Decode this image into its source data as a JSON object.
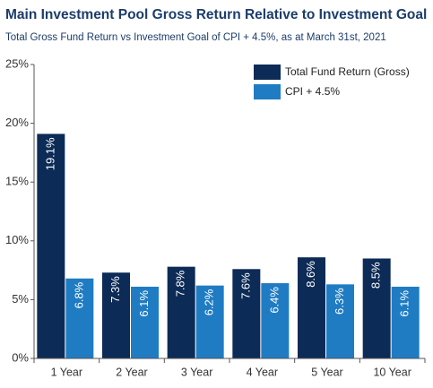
{
  "chart_data": {
    "type": "bar",
    "title": "Main Investment Pool Gross Return Relative to Investment Goal",
    "subtitle": "Total Gross Fund Return vs Investment Goal of CPI + 4.5%, as at March 31st, 2021",
    "categories": [
      "1 Year",
      "2 Year",
      "3 Year",
      "4 Year",
      "5 Year",
      "10 Year"
    ],
    "series": [
      {
        "name": "Total Fund Return (Gross)",
        "color": "#0c2b56",
        "values": [
          19.1,
          7.3,
          7.8,
          7.6,
          8.6,
          8.5
        ],
        "value_labels": [
          "19.1%",
          "7.3%",
          "7.8%",
          "7.6%",
          "8.6%",
          "8.5%"
        ]
      },
      {
        "name": "CPI + 4.5%",
        "color": "#1f7cc3",
        "values": [
          6.8,
          6.1,
          6.2,
          6.4,
          6.3,
          6.1
        ],
        "value_labels": [
          "6.8%",
          "6.1%",
          "6.2%",
          "6.4%",
          "6.3%",
          "6.1%"
        ]
      }
    ],
    "ylim": [
      0,
      25
    ],
    "yticks": [
      {
        "value": 0,
        "label": "0%"
      },
      {
        "value": 5,
        "label": "5%"
      },
      {
        "value": 10,
        "label": "10%"
      },
      {
        "value": 15,
        "label": "15%"
      },
      {
        "value": 20,
        "label": "20%"
      },
      {
        "value": 25,
        "label": "25%"
      }
    ],
    "legend": "top-right"
  }
}
